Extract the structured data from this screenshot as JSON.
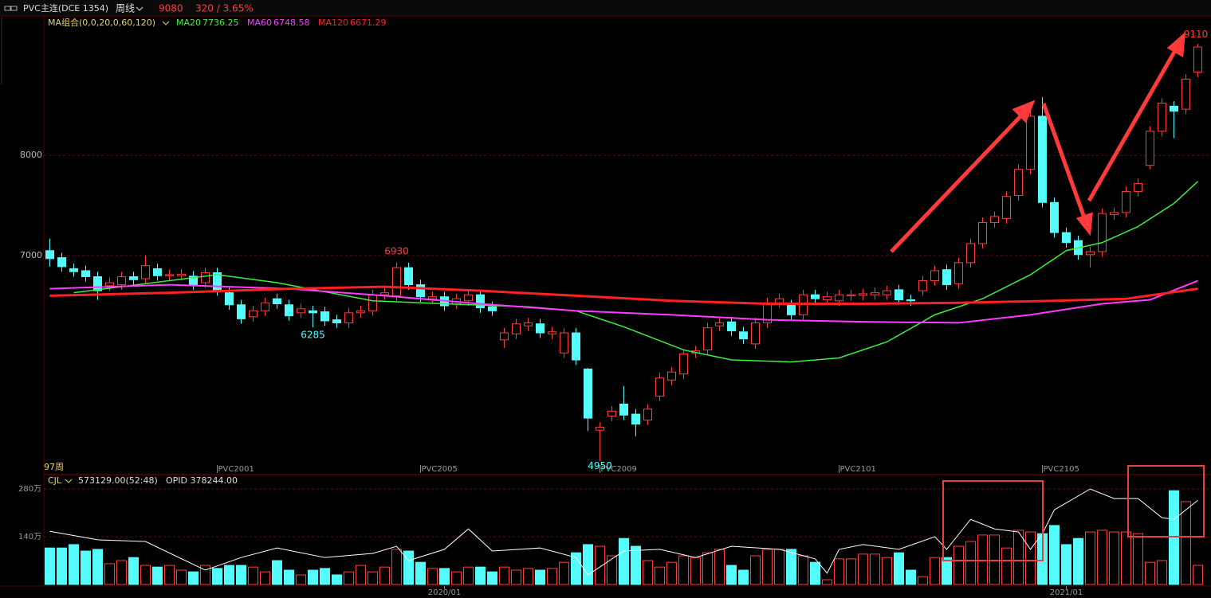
{
  "header": {
    "symbol": "PVC主连(DCE 1354)",
    "period": "周线",
    "price": 9080,
    "change": "320 / 3.65%",
    "ma_group": "MA组合(0,0,20,0,60,120)",
    "bars_count": "97周"
  },
  "chart_data": [
    {
      "type": "candlestick",
      "up_color": "#ff3c3c",
      "down_color": "#54fcfc",
      "ylim": [
        4825,
        9390
      ],
      "yticks": [
        7000,
        8000
      ],
      "xlim": [
        -0.5,
        96.5
      ],
      "grid": true,
      "xticks": [
        {
          "value": 14,
          "label": "PVC2001"
        },
        {
          "value": 31,
          "label": "PVC2005"
        },
        {
          "value": 46,
          "label": "PVC2009"
        },
        {
          "value": 66,
          "label": "PVC2101"
        },
        {
          "value": 83,
          "label": "PVC2105"
        }
      ],
      "open": [
        7050,
        6980,
        6870,
        6850,
        6790,
        6700,
        6710,
        6790,
        6770,
        6870,
        6800,
        6800,
        6795,
        6730,
        6830,
        6630,
        6510,
        6390,
        6450,
        6570,
        6510,
        6430,
        6450,
        6440,
        6360,
        6330,
        6430,
        6450,
        6610,
        6600,
        6880,
        6710,
        6570,
        6590,
        6520,
        6550,
        6610,
        6490,
        6160,
        6220,
        6300,
        6320,
        6220,
        6030,
        6230,
        5870,
        5260,
        5400,
        5520,
        5420,
        5360,
        5600,
        5760,
        5820,
        6030,
        6060,
        6300,
        6340,
        6240,
        6120,
        6330,
        6530,
        6510,
        6410,
        6610,
        6560,
        6550,
        6600,
        6605,
        6610,
        6610,
        6660,
        6560,
        6650,
        6750,
        6860,
        6720,
        6930,
        7120,
        7330,
        7370,
        7600,
        7860,
        8390,
        7530,
        7230,
        7150,
        7010,
        7040,
        7410,
        7430,
        7640,
        7900,
        8240,
        8490,
        8460,
        8830
      ],
      "high": [
        7170,
        7030,
        6920,
        6900,
        6840,
        6780,
        6840,
        6840,
        7000,
        6920,
        6860,
        6865,
        6845,
        6880,
        6880,
        6680,
        6560,
        6500,
        6580,
        6620,
        6560,
        6520,
        6500,
        6490,
        6410,
        6480,
        6500,
        6660,
        6680,
        6930,
        6930,
        6760,
        6640,
        6640,
        6620,
        6660,
        6660,
        6540,
        6280,
        6370,
        6380,
        6370,
        6290,
        6280,
        6280,
        5880,
        5340,
        5500,
        5700,
        5470,
        5520,
        5830,
        5890,
        6070,
        6100,
        6330,
        6380,
        6390,
        6290,
        6380,
        6580,
        6620,
        6560,
        6660,
        6660,
        6640,
        6660,
        6660,
        6670,
        6680,
        6700,
        6710,
        6610,
        6800,
        6900,
        6910,
        6980,
        7170,
        7380,
        7440,
        7640,
        7910,
        8530,
        8580,
        7580,
        7280,
        7200,
        7090,
        7470,
        7480,
        7690,
        7770,
        8290,
        8570,
        8540,
        8810,
        9110
      ],
      "low": [
        6890,
        6840,
        6790,
        6740,
        6560,
        6650,
        6660,
        6710,
        6720,
        6750,
        6750,
        6750,
        6660,
        6680,
        6600,
        6460,
        6320,
        6340,
        6400,
        6470,
        6350,
        6380,
        6285,
        6300,
        6280,
        6280,
        6380,
        6400,
        6560,
        6550,
        6660,
        6540,
        6520,
        6450,
        6470,
        6500,
        6430,
        6400,
        6080,
        6170,
        6250,
        6180,
        6170,
        5980,
        5910,
        5250,
        4950,
        5350,
        5360,
        5200,
        5310,
        5550,
        5710,
        5770,
        5980,
        6010,
        6250,
        6200,
        6120,
        6070,
        6280,
        6480,
        6360,
        6360,
        6520,
        6510,
        6500,
        6550,
        6555,
        6560,
        6560,
        6510,
        6500,
        6600,
        6700,
        6660,
        6670,
        6880,
        7070,
        7280,
        7320,
        7550,
        7810,
        7480,
        7180,
        7080,
        6960,
        6880,
        6990,
        7360,
        7380,
        7590,
        7860,
        8190,
        8170,
        8410,
        8780
      ],
      "close": [
        6970,
        6890,
        6840,
        6790,
        6650,
        6730,
        6790,
        6760,
        6900,
        6800,
        6810,
        6815,
        6710,
        6830,
        6650,
        6510,
        6370,
        6450,
        6530,
        6520,
        6400,
        6470,
        6430,
        6350,
        6330,
        6430,
        6450,
        6610,
        6630,
        6880,
        6710,
        6590,
        6590,
        6500,
        6570,
        6610,
        6480,
        6450,
        6230,
        6320,
        6330,
        6230,
        6240,
        6230,
        5960,
        5380,
        5290,
        5450,
        5410,
        5320,
        5470,
        5780,
        5840,
        6020,
        6050,
        6280,
        6330,
        6250,
        6170,
        6330,
        6530,
        6570,
        6410,
        6610,
        6570,
        6590,
        6610,
        6610,
        6620,
        6630,
        6650,
        6560,
        6550,
        6750,
        6850,
        6710,
        6930,
        7120,
        7330,
        7390,
        7590,
        7860,
        8390,
        7530,
        7230,
        7130,
        7010,
        7040,
        7420,
        7430,
        7640,
        7720,
        8240,
        8520,
        8440,
        8760,
        9080
      ],
      "series": [
        {
          "name": "MA20",
          "color": "#3cf03c",
          "last": 7736.25,
          "x": [
            2,
            14,
            19,
            27,
            33,
            40,
            44,
            48,
            53,
            57,
            62,
            66,
            70,
            74,
            78,
            82,
            85,
            88,
            91,
            94,
            96
          ],
          "values": [
            6630,
            6810,
            6730,
            6550,
            6520,
            6490,
            6450,
            6290,
            6060,
            5960,
            5940,
            5980,
            6140,
            6410,
            6570,
            6810,
            7050,
            7130,
            7290,
            7520,
            7740
          ]
        },
        {
          "name": "MA60",
          "color": "#ff3cff",
          "last": 6748.58,
          "x": [
            0,
            10,
            20,
            28,
            36,
            44,
            52,
            60,
            68,
            76,
            82,
            88,
            92,
            96
          ],
          "values": [
            6670,
            6710,
            6670,
            6600,
            6520,
            6450,
            6410,
            6360,
            6340,
            6330,
            6410,
            6520,
            6560,
            6750
          ]
        },
        {
          "name": "MA120",
          "color": "#ff2020",
          "last": 6671.29,
          "x": [
            0,
            10,
            20,
            28,
            36,
            44,
            52,
            60,
            68,
            76,
            84,
            90,
            96
          ],
          "values": [
            6600,
            6630,
            6670,
            6690,
            6650,
            6600,
            6550,
            6520,
            6520,
            6530,
            6550,
            6570,
            6670
          ]
        }
      ]
    },
    {
      "type": "volume",
      "name": "CJL",
      "stat": "573129.00(52:48)",
      "open_interest_text": "OPID 378244.00",
      "ylim": [
        0,
        320
      ],
      "yticks": [
        {
          "value": 140,
          "label": "140万"
        },
        {
          "value": 280,
          "label": "280万"
        }
      ],
      "grid": true,
      "date_ticks": [
        {
          "value": 33,
          "label": "2020/01"
        },
        {
          "value": 85,
          "label": "2021/01"
        }
      ],
      "values": [
        107,
        107,
        117,
        98,
        103,
        61,
        70,
        79,
        56,
        51,
        56,
        42,
        37,
        56,
        47,
        56,
        56,
        51,
        37,
        70,
        42,
        28,
        42,
        47,
        28,
        37,
        56,
        37,
        51,
        103,
        98,
        65,
        47,
        47,
        37,
        51,
        51,
        37,
        51,
        42,
        47,
        42,
        47,
        65,
        93,
        117,
        112,
        84,
        135,
        112,
        70,
        51,
        65,
        84,
        79,
        93,
        103,
        56,
        42,
        84,
        103,
        103,
        103,
        84,
        65,
        14,
        75,
        75,
        89,
        89,
        79,
        93,
        42,
        23,
        79,
        79,
        112,
        126,
        145,
        145,
        107,
        159,
        154,
        149,
        173,
        117,
        135,
        154,
        159,
        154,
        154,
        149,
        65,
        70,
        275,
        243,
        56
      ],
      "line": {
        "color": "#ffffff",
        "x": [
          0,
          4,
          8,
          13,
          16,
          19,
          23,
          27,
          29,
          30,
          33,
          35,
          37,
          41,
          44,
          45,
          48,
          51,
          54,
          57,
          61,
          64,
          65,
          66,
          68,
          71,
          74,
          75,
          77,
          79,
          81,
          82,
          83,
          84,
          87,
          89,
          91,
          93,
          94,
          96
        ],
        "values": [
          156,
          131,
          126,
          42,
          79,
          107,
          79,
          91,
          112,
          70,
          103,
          163,
          98,
          107,
          79,
          28,
          98,
          103,
          79,
          112,
          103,
          75,
          33,
          103,
          117,
          103,
          140,
          103,
          191,
          163,
          154,
          103,
          149,
          219,
          280,
          252,
          252,
          196,
          191,
          247
        ]
      }
    }
  ]
}
